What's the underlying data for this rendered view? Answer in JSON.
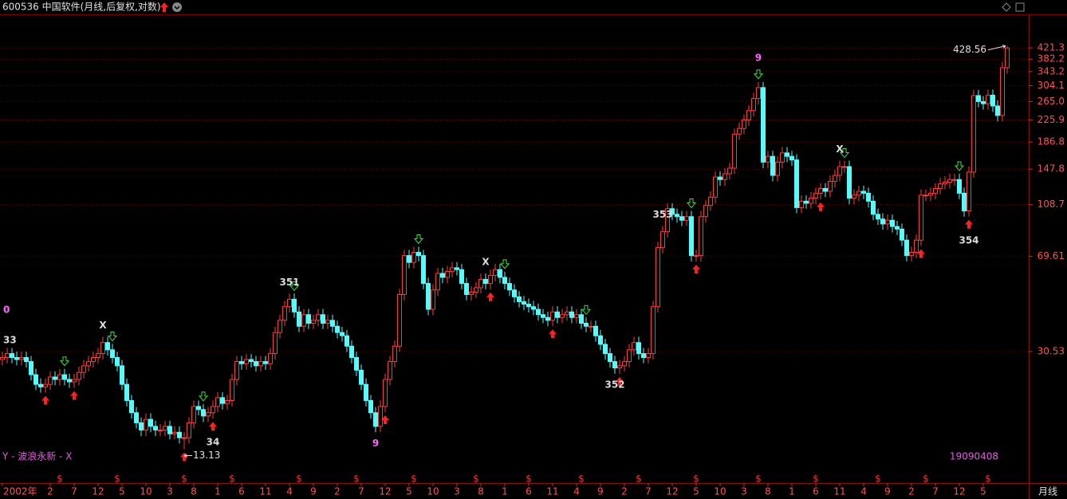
{
  "chart_data": {
    "type": "candlestick",
    "title": "600536 中国软件(月线,后复权,对数)",
    "up_color": "#ff3c3c",
    "down_color": "#54fcfc",
    "log_scale": true,
    "grid": true,
    "ylim": [
      9.8,
      563
    ],
    "yticks": [
      421.3,
      382.2,
      343.2,
      304.1,
      {
        "value": 265,
        "label": "265.0"
      },
      225.9,
      186.8,
      147.8,
      108.7,
      69.61,
      30.53
    ],
    "categories": [
      "2002年",
      null,
      null,
      null,
      null,
      null,
      null,
      null,
      null,
      null,
      "2",
      null,
      null,
      null,
      null,
      "7",
      null,
      null,
      null,
      null,
      "12",
      null,
      null,
      null,
      null,
      "5",
      null,
      null,
      null,
      null,
      "10",
      null,
      null,
      null,
      null,
      "3",
      null,
      null,
      null,
      null,
      "8",
      null,
      null,
      null,
      null,
      "1",
      null,
      null,
      null,
      null,
      "6",
      null,
      null,
      null,
      null,
      "11",
      null,
      null,
      null,
      null,
      "4",
      null,
      null,
      null,
      null,
      "9",
      null,
      null,
      null,
      null,
      "2",
      null,
      null,
      null,
      null,
      "7",
      null,
      null,
      null,
      null,
      "12",
      null,
      null,
      null,
      null,
      "5",
      null,
      null,
      null,
      null,
      "10",
      null,
      null,
      null,
      null,
      "3",
      null,
      null,
      null,
      null,
      "8",
      null,
      null,
      null,
      null,
      "1",
      null,
      null,
      null,
      null,
      "6",
      null,
      null,
      null,
      null,
      "11",
      null,
      null,
      null,
      null,
      "4",
      null,
      null,
      null,
      null,
      "9",
      null,
      null,
      null,
      null,
      "2",
      null,
      null,
      null,
      null,
      "7",
      null,
      null,
      null,
      null,
      "12",
      null,
      null,
      null,
      null,
      "5",
      null,
      null,
      null,
      null,
      "10",
      null,
      null,
      null,
      null,
      "3",
      null,
      null,
      null,
      null,
      "8",
      null,
      null,
      null,
      null,
      "1",
      null,
      null,
      null,
      null,
      "6",
      null,
      null,
      null,
      null,
      "11",
      null,
      null,
      null,
      null,
      "4",
      null,
      null,
      null,
      null,
      "9",
      null,
      null,
      null,
      null,
      "2",
      null,
      null,
      null,
      null,
      "7",
      null,
      null,
      null,
      null,
      "12",
      null,
      null,
      null,
      null,
      "5",
      null,
      null,
      null,
      null,
      null
    ],
    "open": [
      28.5,
      29,
      30,
      29,
      28.5,
      29,
      28,
      25,
      23,
      22.5,
      23,
      24.5,
      24,
      25,
      24,
      23.5,
      24,
      25.5,
      27,
      28,
      29,
      30,
      33,
      31,
      29,
      27,
      23,
      20,
      18,
      16.5,
      15.5,
      17,
      16,
      15.5,
      15.5,
      16,
      15,
      15.2,
      14.5,
      14.5,
      16.5,
      19,
      18.5,
      17.5,
      18,
      19,
      20.5,
      19.5,
      20,
      24,
      28,
      27.5,
      28.5,
      28,
      27,
      28,
      27.5,
      30,
      36,
      40,
      45,
      48,
      43,
      38,
      42,
      39,
      40,
      42,
      39,
      40,
      38,
      36,
      35,
      32,
      29,
      26,
      23,
      20,
      18,
      16,
      19,
      24,
      28,
      32,
      50,
      70,
      66,
      72,
      70,
      55,
      44,
      52,
      60,
      58,
      61,
      63,
      62,
      55,
      50,
      51,
      53,
      57,
      55,
      59,
      62,
      58,
      55,
      52,
      49,
      47,
      46,
      45,
      44,
      42,
      41,
      40,
      43,
      41,
      42,
      43,
      41,
      42,
      39,
      38,
      38,
      35,
      32.5,
      30,
      28,
      26.5,
      27,
      28,
      31,
      33,
      30,
      29,
      30,
      45,
      75,
      86,
      105,
      100,
      98,
      95,
      98,
      70,
      70,
      98,
      108,
      116,
      138,
      135,
      142,
      149,
      200,
      210,
      226,
      245,
      272,
      299,
      157,
      165,
      140,
      157,
      170,
      165,
      160,
      106,
      112,
      110,
      115,
      120,
      125,
      122,
      133,
      140,
      151,
      151,
      115,
      118,
      122,
      120,
      112,
      100,
      96,
      92,
      95,
      90,
      88,
      80,
      70,
      72,
      80,
      118,
      118,
      120,
      125,
      130,
      132,
      135,
      135,
      120,
      103,
      144,
      279,
      265,
      260,
      280,
      255,
      235,
      355
    ],
    "high": [
      30.5,
      31.5,
      31.5,
      30.5,
      30.5,
      30.5,
      29.4,
      26.3,
      24.2,
      24.2,
      25.7,
      25.7,
      26.3,
      26.3,
      25.2,
      25.2,
      26.8,
      28.4,
      29.4,
      30.5,
      31.5,
      34.7,
      34.7,
      32.6,
      30.5,
      28.4,
      24.2,
      21,
      18.9,
      17.3,
      17.9,
      17.9,
      16.8,
      16.3,
      16.8,
      16.8,
      16,
      16,
      15.2,
      17.3,
      20,
      20,
      19.4,
      18.9,
      20,
      21.5,
      21.5,
      21,
      25.2,
      29.4,
      29.4,
      29.9,
      29.9,
      29.4,
      29.4,
      29.4,
      31.5,
      37.8,
      42,
      47.3,
      50.4,
      50.4,
      45.2,
      44.1,
      44.1,
      42,
      44.1,
      44.1,
      42,
      42,
      39.9,
      37.8,
      36.8,
      33.6,
      30.5,
      27.3,
      24.2,
      21,
      18.9,
      20,
      25.2,
      29.4,
      33.6,
      52.5,
      73.5,
      73.5,
      75.6,
      75.6,
      73.5,
      57.8,
      54.6,
      63,
      63,
      64,
      66.2,
      66.2,
      65.1,
      57.8,
      53.6,
      55.7,
      59.9,
      59.9,
      62,
      65.1,
      65.1,
      60.9,
      57.8,
      54.6,
      51.5,
      49.4,
      48.3,
      47.3,
      46.2,
      44.1,
      43.1,
      45.2,
      45.2,
      44.1,
      45.2,
      45.2,
      44.1,
      44.1,
      41,
      39.9,
      39.9,
      36.8,
      34.1,
      31.5,
      29.4,
      28.4,
      29.4,
      32.6,
      34.7,
      34.7,
      31.5,
      31.5,
      47.3,
      78.8,
      90.3,
      110,
      110,
      105,
      103,
      103,
      103,
      73.5,
      103,
      113,
      122,
      145,
      145,
      149,
      156,
      210,
      221,
      237,
      257,
      286,
      314,
      314,
      173,
      173,
      165,
      179,
      179,
      173,
      168,
      118,
      118,
      121,
      126,
      131,
      131,
      140,
      147,
      159,
      159,
      159,
      124,
      128,
      128,
      126,
      118,
      105,
      101,
      99.8,
      99.8,
      94.5,
      92.4,
      84,
      75.6,
      84,
      124,
      124,
      126,
      131,
      137,
      139,
      142,
      142,
      142,
      126,
      151,
      293,
      293,
      278,
      294,
      294,
      268,
      373,
      428.56
    ],
    "low": [
      27.1,
      27.6,
      27.6,
      27.1,
      27.1,
      26.6,
      23.8,
      21.9,
      21.4,
      21.4,
      21.9,
      22.8,
      22.8,
      22.8,
      22.3,
      22.3,
      22.8,
      24.2,
      25.7,
      26.6,
      27.6,
      28.5,
      29.5,
      27.6,
      25.7,
      21.9,
      19,
      17.1,
      15.7,
      14.7,
      14.7,
      15.2,
      14.7,
      14.7,
      14.7,
      14.3,
      14.3,
      13.8,
      13.13,
      13.8,
      15.7,
      17.6,
      16.6,
      16.6,
      17.1,
      18.1,
      18.5,
      18.5,
      19,
      22.8,
      26.1,
      26.1,
      26.6,
      25.7,
      25.7,
      26.1,
      26.1,
      28.5,
      34.2,
      38,
      42.8,
      40.9,
      36.1,
      36.1,
      37.1,
      37.1,
      38,
      37.1,
      37.1,
      36.1,
      34.2,
      33.3,
      30.4,
      27.6,
      24.7,
      21.9,
      19,
      17.1,
      15.2,
      15.2,
      18.1,
      22.8,
      26.6,
      30.4,
      47.5,
      62.7,
      62.7,
      66.5,
      52.3,
      41.8,
      41.8,
      49.4,
      55.1,
      55.1,
      58,
      58.9,
      52.3,
      47.5,
      47.5,
      48.5,
      50.4,
      52.3,
      52.3,
      56.1,
      55.1,
      52.3,
      49.4,
      46.6,
      44.7,
      43.7,
      42.8,
      41.8,
      39.9,
      39,
      38,
      38,
      39,
      39,
      39.9,
      39,
      39,
      37.1,
      36.1,
      36.1,
      33.3,
      30.9,
      28.5,
      26.6,
      25.2,
      25.2,
      25.7,
      26.6,
      29.5,
      28.5,
      27.6,
      27.6,
      28.5,
      42.8,
      71.3,
      81.7,
      95,
      93.1,
      90.3,
      90.3,
      66.5,
      66.5,
      66.5,
      93.1,
      103,
      110,
      128,
      128,
      135,
      142,
      190,
      200,
      215,
      233,
      258,
      149,
      149,
      133,
      133,
      149,
      157,
      152,
      101,
      101,
      105,
      105,
      109,
      114,
      116,
      116,
      126,
      133,
      143,
      109,
      109,
      112,
      114,
      106,
      95,
      91.2,
      87.4,
      87.4,
      85.5,
      83.6,
      76,
      66.5,
      66.5,
      68.4,
      76,
      112,
      112,
      114,
      119,
      124,
      125,
      128,
      114,
      98,
      98,
      137,
      252,
      247,
      247,
      242,
      223,
      223,
      337
    ],
    "close": [
      29,
      30,
      29,
      28.5,
      29,
      28,
      25,
      23,
      22.5,
      23,
      24.5,
      24,
      25,
      24,
      23.5,
      24,
      25.5,
      27,
      28,
      29,
      30,
      33,
      31,
      29,
      27,
      23,
      20,
      18,
      16.5,
      15.5,
      17,
      16,
      15.5,
      15.5,
      16,
      15,
      15.2,
      14.5,
      14.5,
      16.5,
      19,
      18.5,
      17.5,
      18,
      19,
      20.5,
      19.5,
      20,
      24,
      28,
      27.5,
      28.5,
      28,
      27,
      28,
      27.5,
      30,
      36,
      40,
      45,
      48,
      43,
      38,
      42,
      39,
      40,
      42,
      39,
      40,
      38,
      36,
      35,
      32,
      29,
      26,
      23,
      20,
      18,
      16,
      19,
      24,
      28,
      32,
      50,
      70,
      66,
      72,
      70,
      55,
      44,
      52,
      60,
      58,
      61,
      63,
      62,
      55,
      50,
      51,
      53,
      57,
      55,
      59,
      62,
      58,
      55,
      52,
      49,
      47,
      46,
      45,
      44,
      42,
      41,
      40,
      43,
      41,
      42,
      43,
      41,
      42,
      39,
      38,
      38,
      35,
      32.5,
      30,
      28,
      26.5,
      27,
      28,
      31,
      33,
      30,
      29,
      30,
      45,
      75,
      86,
      105,
      100,
      98,
      95,
      98,
      70,
      70,
      98,
      108,
      116,
      138,
      135,
      142,
      149,
      200,
      210,
      226,
      245,
      272,
      299,
      157,
      165,
      140,
      157,
      170,
      165,
      160,
      106,
      112,
      110,
      115,
      120,
      125,
      122,
      133,
      140,
      151,
      151,
      115,
      118,
      122,
      120,
      112,
      100,
      96,
      92,
      95,
      90,
      88,
      80,
      70,
      72,
      80,
      118,
      118,
      120,
      125,
      130,
      132,
      135,
      135,
      120,
      103,
      144,
      279,
      265,
      260,
      280,
      255,
      235,
      355,
      421
    ],
    "signals": [
      {
        "index": 9,
        "type": "buy"
      },
      {
        "index": 13,
        "type": "sell"
      },
      {
        "index": 15,
        "type": "buy"
      },
      {
        "index": 23,
        "type": "sell"
      },
      {
        "index": 38,
        "type": "buy"
      },
      {
        "index": 42,
        "type": "sell"
      },
      {
        "index": 44,
        "type": "buy"
      },
      {
        "index": 61,
        "type": "sell"
      },
      {
        "index": 80,
        "type": "buy"
      },
      {
        "index": 87,
        "type": "sell"
      },
      {
        "index": 102,
        "type": "buy"
      },
      {
        "index": 105,
        "type": "sell"
      },
      {
        "index": 115,
        "type": "buy"
      },
      {
        "index": 122,
        "type": "sell"
      },
      {
        "index": 129,
        "type": "buy"
      },
      {
        "index": 144,
        "type": "sell"
      },
      {
        "index": 145,
        "type": "buy"
      },
      {
        "index": 158,
        "type": "sell"
      },
      {
        "index": 171,
        "type": "buy"
      },
      {
        "index": 176,
        "type": "sell"
      },
      {
        "index": 192,
        "type": "buy"
      },
      {
        "index": 200,
        "type": "sell"
      },
      {
        "index": 202,
        "type": "buy"
      }
    ],
    "buy_color": "#ff2020",
    "sell_color": "#40e040",
    "annotations": [
      {
        "text": "33",
        "index": 0,
        "position": "above",
        "color": "#dcdcdc"
      },
      {
        "text": "0",
        "index": 0,
        "position": "above",
        "color": "#ff66ff"
      },
      {
        "text": "X",
        "index": 21,
        "position": "above",
        "color": "#dcdcdc"
      },
      {
        "text": "34",
        "index": 44,
        "position": "below",
        "color": "#dcdcdc"
      },
      {
        "text": "351",
        "index": 60,
        "position": "above",
        "color": "#dcdcdc"
      },
      {
        "text": "9",
        "index": 78,
        "position": "below",
        "color": "#ff66ff"
      },
      {
        "text": "X",
        "index": 101,
        "position": "above",
        "color": "#dcdcdc"
      },
      {
        "text": "352",
        "index": 128,
        "position": "below",
        "color": "#dcdcdc"
      },
      {
        "text": "353",
        "index": 138,
        "position": "above",
        "color": "#dcdcdc"
      },
      {
        "text": "9",
        "index": 158,
        "position": "above",
        "color": "#ff66ff"
      },
      {
        "text": "X",
        "index": 175,
        "position": "above",
        "color": "#dcdcdc"
      },
      {
        "text": "354",
        "index": 202,
        "position": "below",
        "color": "#dcdcdc"
      }
    ],
    "extremes": [
      {
        "index": 38,
        "field": "low"
      },
      {
        "index": 210,
        "field": "high"
      }
    ],
    "dividend_label": "$",
    "dividend_months": [
      12,
      24,
      38,
      48,
      62,
      74,
      86,
      99,
      110,
      121,
      133,
      145,
      158,
      170,
      183,
      193,
      206
    ],
    "indicator_name": "Y - 波浪永新 - X",
    "date_code": "19090408",
    "period_label": "月线"
  }
}
